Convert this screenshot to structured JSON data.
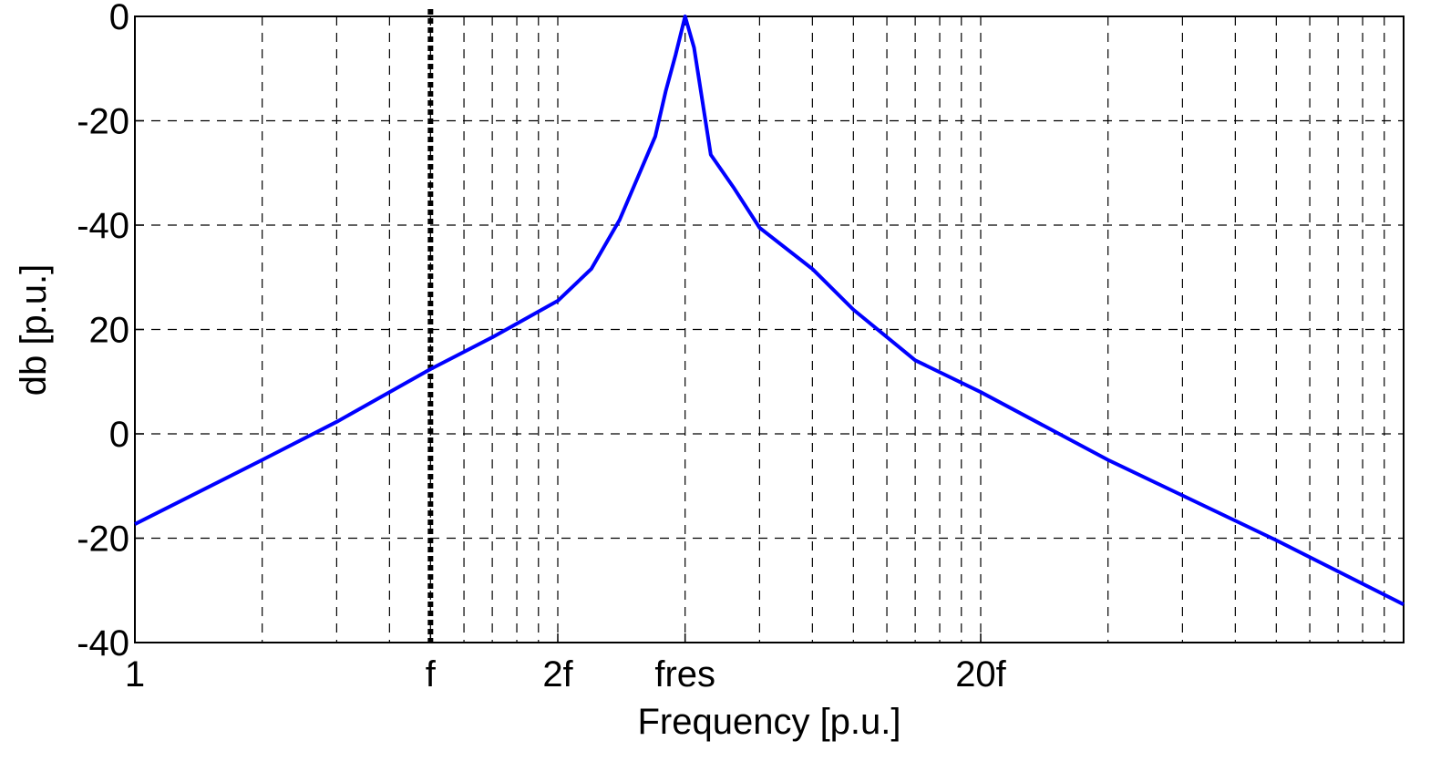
{
  "chart_data": {
    "type": "line",
    "xlabel": "Frequency [p.u.]",
    "ylabel": "db [p.u.]",
    "xscale": "log",
    "xlim": [
      1,
      1000
    ],
    "xticks": [
      1,
      {
        "value": 5,
        "label": "f"
      },
      {
        "value": 10,
        "label": "2f"
      },
      {
        "value": 20,
        "label": "fres"
      },
      {
        "value": 100,
        "label": "20f"
      }
    ],
    "ylim": [
      -40,
      80
    ],
    "yticks": [
      -40,
      -20,
      0,
      20,
      {
        "value": 40,
        "label": "-40"
      },
      {
        "value": 60,
        "label": "-20"
      },
      {
        "value": 80,
        "label": "0"
      }
    ],
    "grid": true,
    "vline": 5,
    "series": [
      {
        "name": null,
        "color": "#0000ff",
        "x": [
          1,
          2,
          3,
          5,
          7,
          10,
          12,
          14,
          17,
          18,
          19,
          20,
          21,
          23,
          26,
          30,
          40,
          50,
          70,
          100,
          200,
          500,
          1000
        ],
        "values": [
          -17.3,
          -5,
          2.3,
          12.4,
          18.5,
          25.5,
          31.6,
          41,
          57,
          65.7,
          72.7,
          80,
          74,
          53.5,
          47.3,
          39.5,
          31.6,
          23.8,
          14.1,
          8,
          -5,
          -20.4,
          -32.7
        ]
      }
    ]
  }
}
